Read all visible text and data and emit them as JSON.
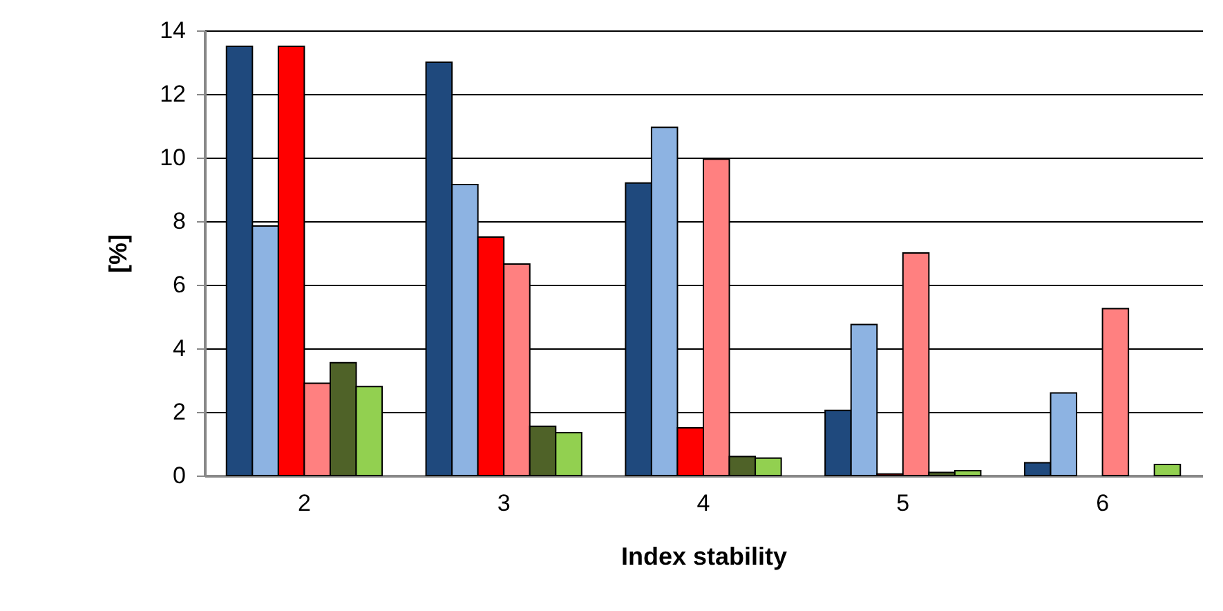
{
  "chart_data": {
    "type": "bar",
    "xlabel": "Index stability",
    "ylabel": "[%]",
    "categories": [
      "2",
      "3",
      "4",
      "5",
      "6"
    ],
    "series": [
      {
        "color": "#1f497d",
        "values": [
          13.5,
          13.0,
          9.2,
          2.05,
          0.4
        ]
      },
      {
        "color": "#8db3e2",
        "values": [
          7.85,
          9.15,
          10.95,
          4.75,
          2.6
        ]
      },
      {
        "color": "#ff0000",
        "values": [
          13.5,
          7.5,
          1.5,
          0.05,
          null
        ]
      },
      {
        "color": "#ff8080",
        "values": [
          2.9,
          6.65,
          9.95,
          7.0,
          5.25
        ]
      },
      {
        "color": "#4f6228",
        "values": [
          3.55,
          1.55,
          0.6,
          0.1,
          null
        ]
      },
      {
        "color": "#92d050",
        "values": [
          2.8,
          1.35,
          0.55,
          0.15,
          0.35
        ]
      }
    ],
    "ylim": [
      0,
      14
    ],
    "yticks": [
      0,
      2,
      4,
      6,
      8,
      10,
      12,
      14
    ],
    "grid": "y",
    "legend": false
  }
}
